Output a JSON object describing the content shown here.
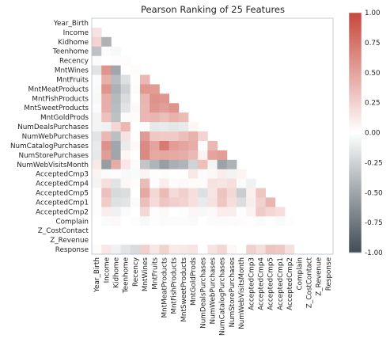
{
  "chart_data": {
    "type": "heatmap",
    "title": "Pearson Ranking of 25 Features",
    "labels": [
      "Year_Birth",
      "Income",
      "Kidhome",
      "Teenhome",
      "Recency",
      "MntWines",
      "MntFruits",
      "MntMeatProducts",
      "MntFishProducts",
      "MntSweetProducts",
      "MntGoldProds",
      "NumDealsPurchases",
      "NumWebPurchases",
      "NumCatalogPurchases",
      "NumStorePurchases",
      "NumWebVisitsMonth",
      "AcceptedCmp3",
      "AcceptedCmp4",
      "AcceptedCmp5",
      "AcceptedCmp1",
      "AcceptedCmp2",
      "Complain",
      "Z_CostContact",
      "Z_Revenue",
      "Response"
    ],
    "mask": "upper-triangle-including-diagonal",
    "lower_triangle_rows": [
      [],
      [
        0.16
      ],
      [
        0.23,
        -0.43
      ],
      [
        -0.35,
        0.02,
        -0.04
      ],
      [
        -0.02,
        0.0,
        0.01,
        0.02
      ],
      [
        -0.16,
        0.58,
        -0.5,
        0.0,
        0.02
      ],
      [
        -0.02,
        0.43,
        -0.37,
        -0.18,
        0.01,
        0.39
      ],
      [
        -0.03,
        0.58,
        -0.44,
        -0.26,
        0.02,
        0.56,
        0.54
      ],
      [
        -0.04,
        0.44,
        -0.39,
        -0.2,
        0.0,
        0.4,
        0.59,
        0.57
      ],
      [
        -0.02,
        0.44,
        -0.37,
        -0.16,
        0.03,
        0.39,
        0.57,
        0.52,
        0.58
      ],
      [
        -0.06,
        0.33,
        -0.35,
        -0.02,
        0.02,
        0.39,
        0.4,
        0.35,
        0.42,
        0.37
      ],
      [
        -0.06,
        -0.08,
        0.22,
        0.39,
        0.0,
        0.01,
        -0.13,
        -0.12,
        -0.14,
        -0.12,
        0.05
      ],
      [
        -0.15,
        0.39,
        -0.36,
        0.16,
        -0.01,
        0.55,
        0.3,
        0.29,
        0.29,
        0.35,
        0.42,
        0.23
      ],
      [
        -0.12,
        0.59,
        -0.5,
        -0.11,
        0.03,
        0.63,
        0.49,
        0.72,
        0.53,
        0.49,
        0.44,
        -0.01,
        0.38
      ],
      [
        -0.13,
        0.53,
        -0.5,
        0.05,
        0.0,
        0.64,
        0.46,
        0.48,
        0.46,
        0.45,
        0.38,
        0.07,
        0.5,
        0.52
      ],
      [
        0.12,
        -0.55,
        0.45,
        0.13,
        -0.02,
        -0.32,
        -0.42,
        -0.54,
        -0.45,
        -0.42,
        -0.25,
        0.35,
        -0.06,
        -0.52,
        -0.43
      ],
      [
        0.06,
        -0.02,
        0.01,
        -0.04,
        -0.03,
        0.06,
        0.01,
        0.02,
        0.0,
        0.0,
        0.12,
        -0.02,
        0.04,
        0.1,
        -0.07,
        0.06
      ],
      [
        -0.06,
        0.18,
        -0.16,
        0.04,
        0.02,
        0.37,
        0.01,
        0.1,
        0.02,
        0.03,
        0.02,
        0.02,
        0.16,
        0.14,
        0.18,
        -0.03,
        -0.08
      ],
      [
        0.01,
        0.34,
        -0.21,
        -0.19,
        0.0,
        0.47,
        0.21,
        0.37,
        0.2,
        0.26,
        0.18,
        -0.18,
        0.14,
        0.32,
        0.21,
        -0.28,
        0.08,
        0.31
      ],
      [
        0.01,
        0.28,
        -0.17,
        -0.15,
        -0.02,
        0.35,
        0.19,
        0.31,
        0.26,
        0.24,
        0.17,
        -0.12,
        0.16,
        0.31,
        0.18,
        -0.19,
        0.09,
        0.25,
        0.4
      ],
      [
        -0.01,
        0.09,
        -0.08,
        -0.02,
        0.0,
        0.21,
        -0.01,
        0.04,
        0.0,
        0.01,
        0.05,
        -0.04,
        0.03,
        0.1,
        0.09,
        -0.01,
        0.07,
        0.29,
        0.22,
        0.18
      ],
      [
        0.0,
        -0.03,
        0.04,
        0.0,
        0.01,
        -0.04,
        -0.01,
        -0.02,
        -0.02,
        -0.02,
        -0.03,
        0.0,
        -0.02,
        -0.02,
        -0.02,
        0.02,
        0.01,
        -0.03,
        -0.01,
        -0.03,
        -0.01
      ],
      [
        0,
        0,
        0,
        0,
        0,
        0,
        0,
        0,
        0,
        0,
        0,
        0,
        0,
        0,
        0,
        0,
        0,
        0,
        0,
        0,
        0,
        0
      ],
      [
        0,
        0,
        0,
        0,
        0,
        0,
        0,
        0,
        0,
        0,
        0,
        0,
        0,
        0,
        0,
        0,
        0,
        0,
        0,
        0,
        0,
        0,
        0
      ],
      [
        0.02,
        0.13,
        -0.08,
        -0.15,
        -0.2,
        0.25,
        0.13,
        0.24,
        0.11,
        0.12,
        0.14,
        0.0,
        0.15,
        0.22,
        0.04,
        0.0,
        0.25,
        0.18,
        0.32,
        0.3,
        0.17,
        0.0,
        0,
        0
      ]
    ],
    "colorbar": {
      "vmin": -1.0,
      "vmax": 1.0,
      "ticks": [
        "1.00",
        "0.75",
        "0.50",
        "0.25",
        "0.00",
        "-0.25",
        "-0.50",
        "-0.75",
        "-1.00"
      ],
      "colors": {
        "negative_end": "#414d57",
        "mid": "#ffffff",
        "positive_end": "#c8473b"
      }
    },
    "grid": false,
    "legend": "colorbar-right"
  }
}
